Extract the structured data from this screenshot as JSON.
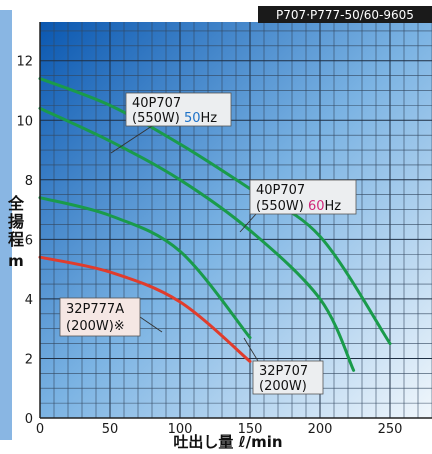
{
  "header": {
    "code": "P707·P777-50/60-9605"
  },
  "chart_data": {
    "type": "line",
    "xlabel": "吐出し量 ℓ/min",
    "ylabel_chars": [
      "全",
      "揚",
      "程"
    ],
    "yunit": "m",
    "xlim": [
      0,
      280
    ],
    "ylim": [
      0,
      13.3
    ],
    "xticks": [
      0,
      50,
      100,
      150,
      200,
      250
    ],
    "yticks": [
      0,
      2,
      4,
      6,
      8,
      10,
      12
    ],
    "grid": true,
    "colors": {
      "green": "#1a9b4b",
      "red": "#e03c2c",
      "hz50": "#1e72c8",
      "hz60": "#d0267a"
    },
    "series": [
      {
        "name": "40P707 (550W) 60Hz",
        "color": "green",
        "x": [
          0,
          50,
          100,
          150,
          200,
          250
        ],
        "y": [
          11.4,
          10.5,
          9.2,
          7.7,
          6.1,
          2.5
        ]
      },
      {
        "name": "40P707 (550W) 50Hz",
        "color": "green",
        "x": [
          0,
          50,
          100,
          150,
          200,
          224
        ],
        "y": [
          10.4,
          9.3,
          8.0,
          6.3,
          4.0,
          1.6
        ]
      },
      {
        "name": "32P707 (200W)",
        "color": "green",
        "x": [
          0,
          50,
          100,
          150
        ],
        "y": [
          7.4,
          6.8,
          5.6,
          2.7
        ]
      },
      {
        "name": "32P777A (200W)※",
        "color": "red",
        "x": [
          0,
          50,
          100,
          150
        ],
        "y": [
          5.4,
          4.9,
          3.9,
          1.9
        ]
      }
    ],
    "labels": [
      {
        "id": "l40p50",
        "lines": [
          "40P707",
          "(550W) ",
          "50",
          "Hz"
        ]
      },
      {
        "id": "l40p60",
        "lines": [
          "40P707",
          "(550W) ",
          "60",
          "Hz"
        ]
      },
      {
        "id": "l32p777",
        "lines": [
          "32P777A",
          "(200W)※"
        ]
      },
      {
        "id": "l32p707",
        "lines": [
          "32P707",
          "(200W)"
        ]
      }
    ]
  }
}
